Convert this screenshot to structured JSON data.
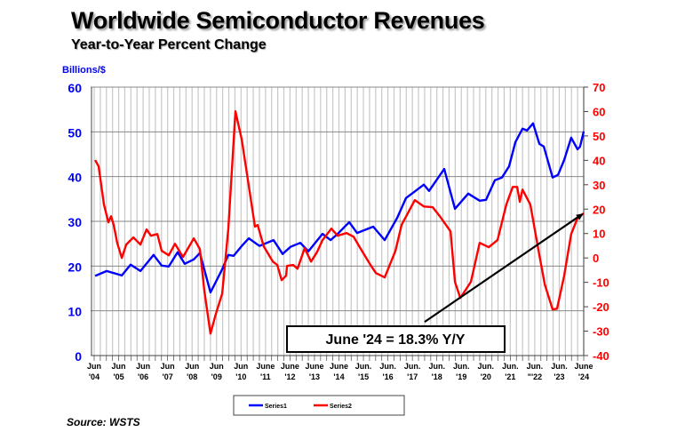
{
  "title": "Worldwide Semiconductor Revenues",
  "subtitle": "Year-to-Year Percent Change",
  "source": "Source: WSTS",
  "colors": {
    "series1": "#0000ff",
    "series2": "#ff0000",
    "grid": "#888888",
    "minor_grid": "#c8c8c8"
  },
  "chart_data": {
    "type": "line",
    "title": "Worldwide Semiconductor Revenues",
    "subtitle": "Year-to-Year Percent Change",
    "ylabel": "Billions/$",
    "ylim": [
      0,
      60
    ],
    "y2lim": [
      -40,
      70
    ],
    "xlim": [
      2004.42,
      2024.42
    ],
    "yticks": [
      0,
      10,
      20,
      30,
      40,
      50,
      60
    ],
    "y2ticks": [
      -40,
      -30,
      -20,
      -10,
      0,
      10,
      20,
      30,
      40,
      50,
      60,
      70
    ],
    "xticks": [
      {
        "x": 2004.42,
        "l1": "Jun",
        "l2": "'04"
      },
      {
        "x": 2005.42,
        "l1": "Jun",
        "l2": "'05"
      },
      {
        "x": 2006.42,
        "l1": "Jun",
        "l2": "'06"
      },
      {
        "x": 2007.42,
        "l1": "Jun",
        "l2": "'07"
      },
      {
        "x": 2008.42,
        "l1": "Jun",
        "l2": "'08"
      },
      {
        "x": 2009.42,
        "l1": "Jun",
        "l2": "'09"
      },
      {
        "x": 2010.42,
        "l1": "Jun",
        "l2": "'10"
      },
      {
        "x": 2011.42,
        "l1": "June",
        "l2": "'11"
      },
      {
        "x": 2012.42,
        "l1": "June",
        "l2": "'12"
      },
      {
        "x": 2013.42,
        "l1": "June",
        "l2": "'13"
      },
      {
        "x": 2014.42,
        "l1": "June",
        "l2": "'14"
      },
      {
        "x": 2015.42,
        "l1": "Jun.",
        "l2": "'15"
      },
      {
        "x": 2016.42,
        "l1": "Jun.",
        "l2": "'16"
      },
      {
        "x": 2017.42,
        "l1": "Jun.",
        "l2": "'17"
      },
      {
        "x": 2018.42,
        "l1": "Jun.",
        "l2": "'18"
      },
      {
        "x": 2019.42,
        "l1": "Jun.",
        "l2": "'19"
      },
      {
        "x": 2020.42,
        "l1": "Jun.",
        "l2": "'20"
      },
      {
        "x": 2021.42,
        "l1": "Jun.",
        "l2": "'21"
      },
      {
        "x": 2022.42,
        "l1": "Jun.",
        "l2": "\"'22"
      },
      {
        "x": 2023.42,
        "l1": "Jun.",
        "l2": "'23"
      },
      {
        "x": 2024.42,
        "l1": "June",
        "l2": "'24"
      }
    ],
    "grid": true,
    "legend": {
      "placement": "bottom",
      "entries": [
        "Series1",
        "Series2"
      ]
    },
    "series": [
      {
        "name": "Series1",
        "axis": "left",
        "x": [
          2004.46,
          2004.93,
          2005.55,
          2005.91,
          2006.31,
          2006.85,
          2007.18,
          2007.47,
          2007.83,
          2008.12,
          2008.49,
          2008.74,
          2009.17,
          2009.65,
          2009.9,
          2010.12,
          2010.45,
          2010.74,
          2011.17,
          2011.75,
          2012.12,
          2012.44,
          2012.84,
          2013.17,
          2013.75,
          2014.08,
          2014.37,
          2014.73,
          2014.84,
          2015.16,
          2015.82,
          2016.29,
          2016.8,
          2017.16,
          2017.89,
          2018.1,
          2018.72,
          2019.16,
          2019.7,
          2020.17,
          2020.43,
          2020.79,
          2021.08,
          2021.37,
          2021.63,
          2021.92,
          2022.1,
          2022.35,
          2022.61,
          2022.79,
          2023.15,
          2023.37,
          2023.62,
          2023.91,
          2024.17,
          2024.27,
          2024.42
        ],
        "values": [
          17.8,
          18.9,
          17.9,
          20.3,
          18.9,
          22.5,
          20.1,
          19.9,
          23.1,
          20.5,
          21.5,
          22.9,
          14.1,
          19.3,
          22.5,
          22.3,
          24.5,
          26.2,
          24.5,
          25.8,
          22.7,
          24.3,
          25.2,
          23.3,
          27.2,
          25.8,
          27.2,
          29.2,
          29.8,
          27.4,
          28.8,
          25.8,
          30.8,
          35.2,
          38.2,
          36.8,
          41.7,
          32.8,
          36.2,
          34.6,
          34.8,
          39.2,
          39.8,
          42.3,
          47.7,
          50.7,
          50.3,
          51.9,
          47.3,
          46.7,
          39.8,
          40.4,
          43.7,
          48.7,
          46.1,
          46.7,
          50.1
        ]
      },
      {
        "name": "Series2",
        "axis": "right",
        "x": [
          2004.46,
          2004.6,
          2004.82,
          2005.0,
          2005.11,
          2005.22,
          2005.36,
          2005.55,
          2005.73,
          2006.02,
          2006.31,
          2006.56,
          2006.74,
          2007.0,
          2007.18,
          2007.47,
          2007.72,
          2008.05,
          2008.49,
          2008.74,
          2008.92,
          2009.17,
          2009.39,
          2009.65,
          2009.9,
          2010.19,
          2010.45,
          2010.99,
          2011.1,
          2011.35,
          2011.72,
          2011.9,
          2012.08,
          2012.26,
          2012.3,
          2012.55,
          2012.73,
          2013.02,
          2013.28,
          2013.53,
          2013.75,
          2014.11,
          2014.37,
          2014.73,
          2015.02,
          2015.27,
          2015.71,
          2015.93,
          2016.29,
          2016.73,
          2016.98,
          2017.52,
          2017.89,
          2018.25,
          2018.54,
          2018.98,
          2019.16,
          2019.38,
          2019.81,
          2020.17,
          2020.54,
          2020.9,
          2021.26,
          2021.52,
          2021.7,
          2021.81,
          2021.92,
          2022.24,
          2022.61,
          2022.83,
          2023.15,
          2023.33,
          2023.62,
          2023.91,
          2024.17,
          2024.42
        ],
        "values": [
          40.1,
          37.5,
          21.9,
          14.6,
          17.1,
          13.5,
          6.2,
          0,
          5.5,
          8.4,
          5.5,
          11.7,
          9.1,
          9.8,
          2.9,
          1.1,
          5.8,
          0.4,
          8,
          3.6,
          -13.5,
          -31,
          -23,
          -14.6,
          12,
          60.1,
          48.5,
          12.8,
          13.5,
          4.7,
          -1.5,
          -2.9,
          -9.1,
          -7.3,
          -3.3,
          -2.9,
          -4.4,
          4,
          -1.5,
          2.5,
          7.3,
          12,
          9.1,
          10.2,
          8.7,
          4.4,
          -2.9,
          -6.2,
          -8,
          2.9,
          13.5,
          23.7,
          21.1,
          20.8,
          17.1,
          10.9,
          -9.8,
          -16.4,
          -9.8,
          6.2,
          4.4,
          7.3,
          21.9,
          29.1,
          29.1,
          23,
          28,
          21.9,
          1.1,
          -10.9,
          -21.1,
          -20.8,
          -7.3,
          9.8,
          16.4,
          18.3
        ]
      }
    ],
    "annotations": [
      {
        "text": "June '24 = 18.3% Y/Y",
        "arrow_from": [
          2017.92,
          -26.2
        ],
        "arrow_to": [
          2024.42,
          18.3
        ]
      }
    ]
  }
}
